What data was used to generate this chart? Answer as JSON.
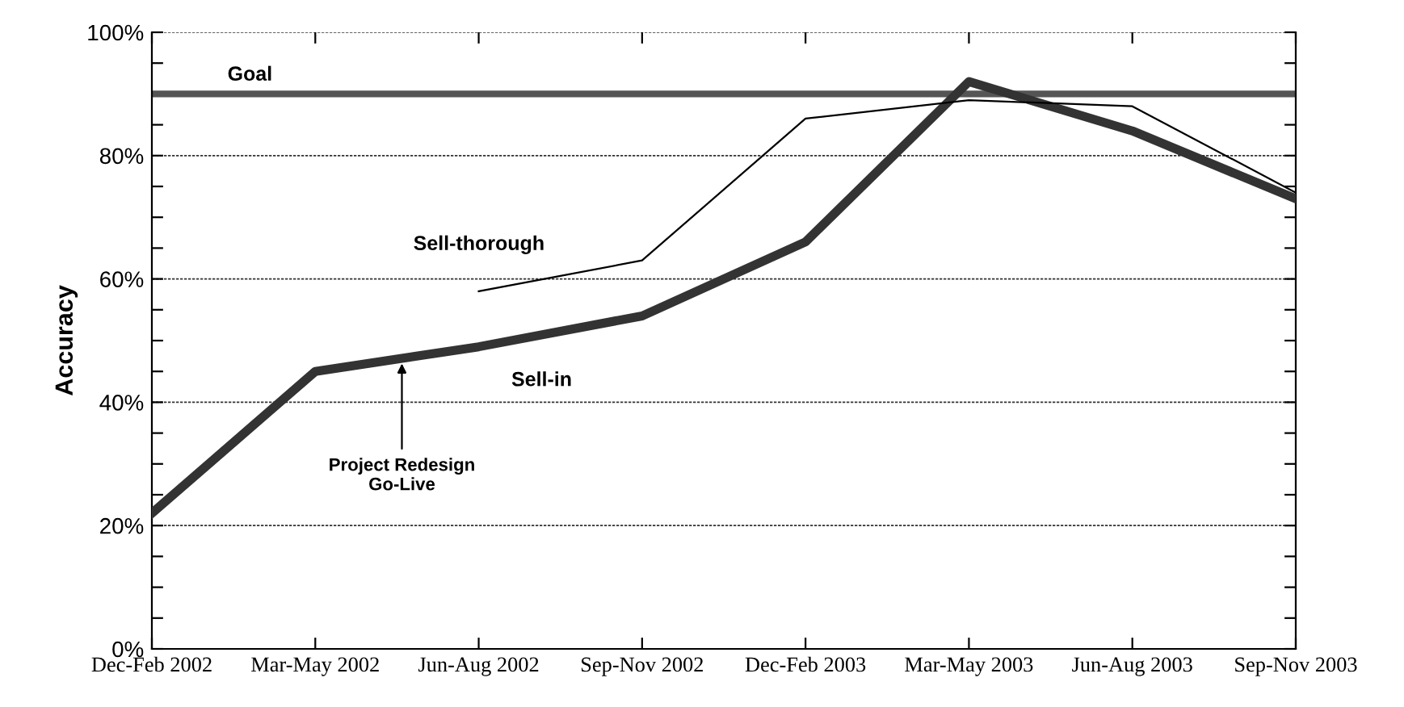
{
  "chart_data": {
    "type": "line",
    "ylabel": "Accuracy",
    "categories": [
      "Dec-Feb 2002",
      "Mar-May 2002",
      "Jun-Aug 2002",
      "Sep-Nov 2002",
      "Dec-Feb 2003",
      "Mar-May 2003",
      "Jun-Aug 2003",
      "Sep-Nov 2003"
    ],
    "series": [
      {
        "name": "Sell-in",
        "color": "#333333",
        "values": [
          22,
          45,
          49,
          54,
          66,
          92,
          84,
          73
        ]
      },
      {
        "name": "Sell-thorough",
        "color": "#000000",
        "values": [
          null,
          null,
          58,
          63,
          86,
          89,
          88,
          74
        ]
      }
    ],
    "ylim": [
      0,
      100
    ],
    "yticks": [
      {
        "value": 0,
        "label": "0%"
      },
      {
        "value": 5,
        "label": null
      },
      {
        "value": 10,
        "label": null
      },
      {
        "value": 15,
        "label": null
      },
      {
        "value": 20,
        "label": "20%"
      },
      {
        "value": 25,
        "label": null
      },
      {
        "value": 30,
        "label": null
      },
      {
        "value": 35,
        "label": null
      },
      {
        "value": 40,
        "label": "40%"
      },
      {
        "value": 45,
        "label": null
      },
      {
        "value": 50,
        "label": null
      },
      {
        "value": 55,
        "label": null
      },
      {
        "value": 60,
        "label": "60%"
      },
      {
        "value": 65,
        "label": null
      },
      {
        "value": 70,
        "label": null
      },
      {
        "value": 75,
        "label": null
      },
      {
        "value": 80,
        "label": "80%"
      },
      {
        "value": 85,
        "label": null
      },
      {
        "value": 90,
        "label": null
      },
      {
        "value": 95,
        "label": null
      },
      {
        "value": 100,
        "label": "100%"
      }
    ],
    "grid": "y",
    "ref_lines": [
      {
        "axis": "y",
        "value": 90,
        "label": "Goal",
        "color": "#555555"
      }
    ],
    "annotations": [
      {
        "text": "Project Redesign\nGo-Live",
        "y": 47
      }
    ],
    "marker": "none",
    "line_style": "solid",
    "legend": false
  }
}
